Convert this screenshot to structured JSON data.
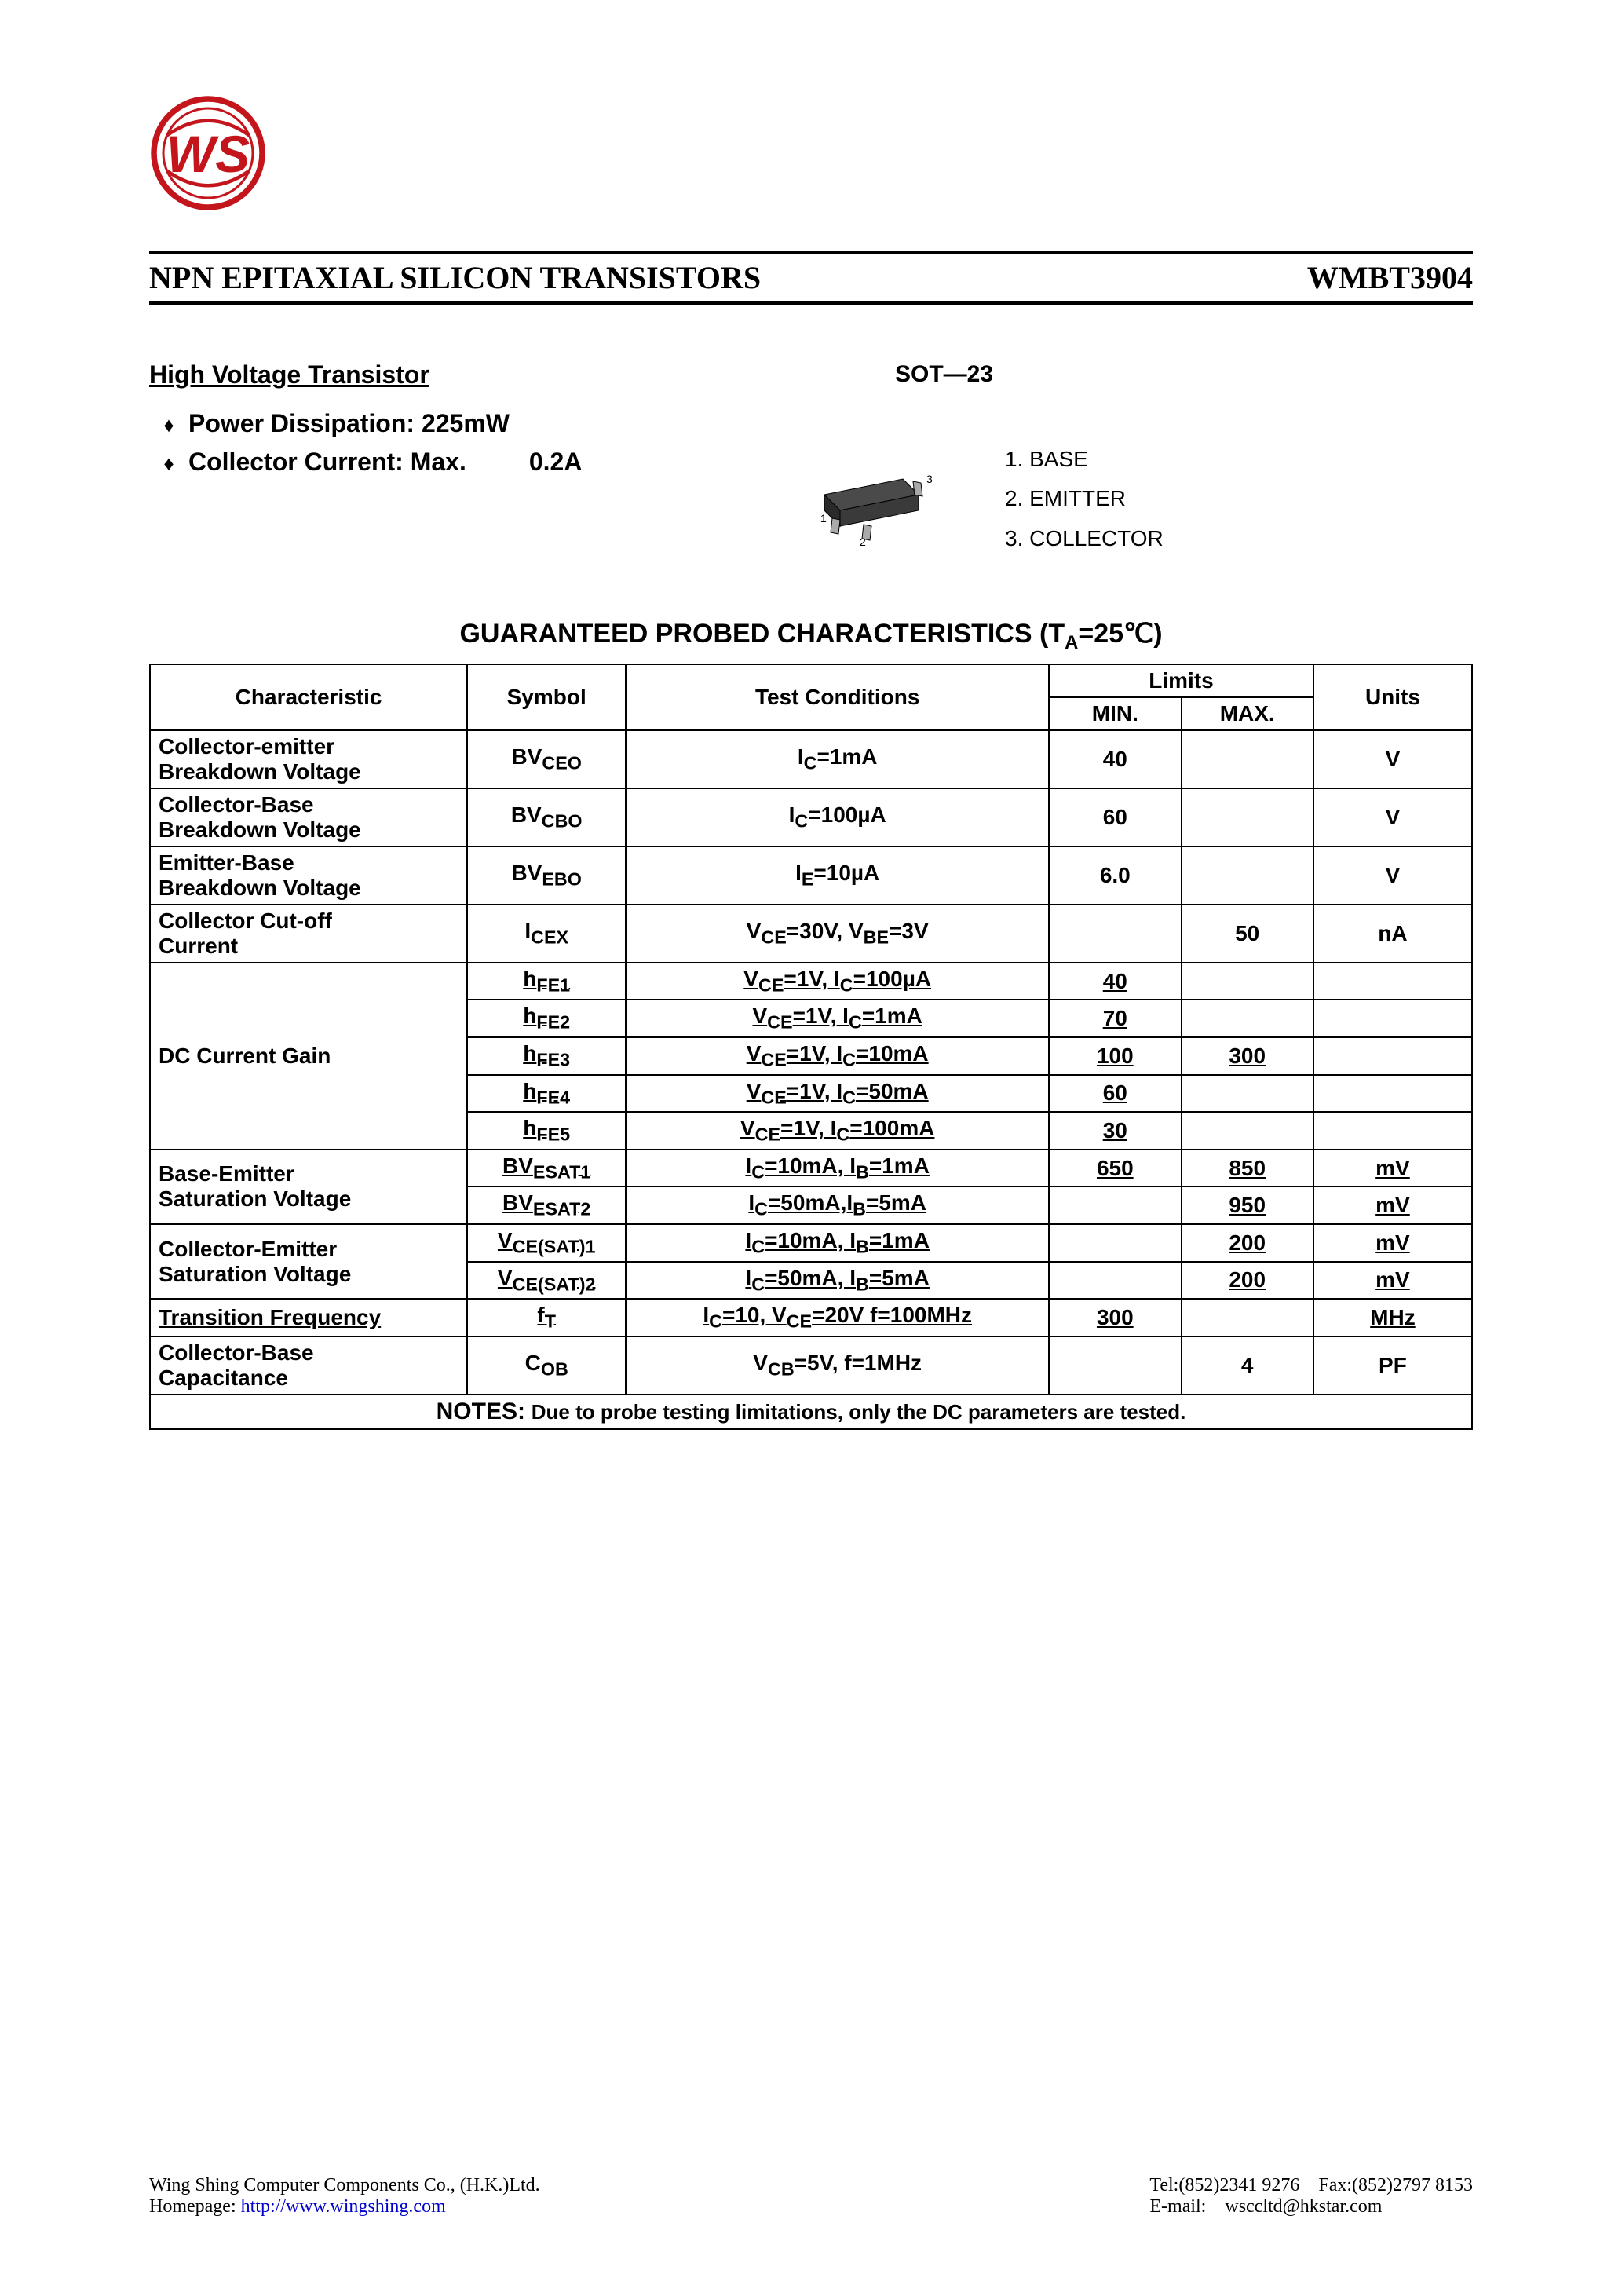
{
  "header": {
    "title": "NPN EPITAXIAL SILICON TRANSISTORS",
    "part": "WMBT3904"
  },
  "subheading": "High Voltage Transistor",
  "bullets": [
    {
      "label": "Power Dissipation: 225mW",
      "value": ""
    },
    {
      "label": "Collector Current:  Max.",
      "value": "0.2A"
    }
  ],
  "package": {
    "label": "SOT—23",
    "pins": [
      "1. BASE",
      "2. EMITTER",
      "3. COLLECTOR"
    ]
  },
  "tableTitle": {
    "prefix": "GUARANTEED PROBED CHARACTERISTICS (T",
    "subA": "A",
    "suffix": "=25℃)"
  },
  "columns": {
    "characteristic": "Characteristic",
    "symbol": "Symbol",
    "testConditions": "Test Conditions",
    "limits": "Limits",
    "min": "MIN.",
    "max": "MAX.",
    "units": "Units"
  },
  "rows": [
    {
      "char": "Collector-emitter<br>Breakdown Voltage",
      "sym": "BV<sub>CEO</sub>",
      "cond": "I<sub>C</sub>=1mA",
      "min": "40",
      "max": "",
      "unit": "V",
      "u": false,
      "charRowspan": 1
    },
    {
      "char": "Collector-Base<br>Breakdown Voltage",
      "sym": "BV<sub>CBO</sub>",
      "cond": "I<sub>C</sub>=100µA",
      "min": "60",
      "max": "",
      "unit": "V",
      "u": false,
      "charRowspan": 1
    },
    {
      "char": "Emitter-Base<br>Breakdown Voltage",
      "sym": "BV<sub>EBO</sub>",
      "cond": "I<sub>E</sub>=10µA",
      "min": "6.0",
      "max": "",
      "unit": "V",
      "u": false,
      "charRowspan": 1
    },
    {
      "char": "Collector  Cut-off<br>Current",
      "sym": "I<sub>CEX</sub>",
      "cond": "V<sub>CE</sub>=30V, V<sub>BE</sub>=3V",
      "min": "",
      "max": "50",
      "unit": "nA",
      "u": false,
      "charRowspan": 1
    },
    {
      "char": "DC Current Gain",
      "sym": "h<sub>FE1</sub>",
      "cond": "V<sub>CE</sub>=1V, I<sub>C</sub>=100µA",
      "min": "40",
      "max": "",
      "unit": "",
      "u": true,
      "charRowspan": 5
    },
    {
      "char": null,
      "sym": "h<sub>FE2</sub>",
      "cond": "V<sub>CE</sub>=1V, I<sub>C</sub>=1mA",
      "min": "70",
      "max": "",
      "unit": "",
      "u": true
    },
    {
      "char": null,
      "sym": "h<sub>FE3</sub>",
      "cond": "V<sub>CE</sub>=1V, I<sub>C</sub>=10mA",
      "min": "100",
      "max": "300",
      "unit": "",
      "u": true
    },
    {
      "char": null,
      "sym": "h<sub>FE4</sub>",
      "cond": "V<sub>CE</sub>=1V, I<sub>C</sub>=50mA",
      "min": "60",
      "max": "",
      "unit": "",
      "u": true
    },
    {
      "char": null,
      "sym": "h<sub>FE5</sub>",
      "cond": "V<sub>CE</sub>=1V, I<sub>C</sub>=100mA",
      "min": "30",
      "max": "",
      "unit": "",
      "u": true
    },
    {
      "char": "Base-Emitter<br>Saturation Voltage",
      "sym": "BV<sub>ESAT1</sub>",
      "cond": "I<sub>C</sub>=10mA, I<sub>B</sub>=1mA",
      "min": "650",
      "max": "850",
      "unit": "mV",
      "u": true,
      "charRowspan": 2
    },
    {
      "char": null,
      "sym": "BV<sub>ESAT2</sub>",
      "cond": "I<sub>C</sub>=50mA,I<sub>B</sub>=5mA",
      "min": "",
      "max": "950",
      "unit": "mV",
      "u": true
    },
    {
      "char": "Collector-Emitter<br>Saturation Voltage",
      "sym": "V<sub>CE(SAT)1</sub>",
      "cond": "I<sub>C</sub>=10mA, I<sub>B</sub>=1mA",
      "min": "",
      "max": "200",
      "unit": "mV",
      "u": true,
      "charRowspan": 2
    },
    {
      "char": null,
      "sym": "V<sub>CE(SAT)2</sub>",
      "cond": "I<sub>C</sub>=50mA, I<sub>B</sub>=5mA",
      "min": "",
      "max": "200",
      "unit": "mV",
      "u": true
    },
    {
      "char": "Transition Frequency",
      "sym": "f<sub>T</sub>",
      "cond": "I<sub>C</sub>=10, V<sub>CE</sub>=20V f=100MHz",
      "min": "300",
      "max": "",
      "unit": "MHz",
      "u": true,
      "charRowspan": 1
    },
    {
      "char": "Collector-Base<br>Capacitance",
      "sym": "C<sub>OB</sub>",
      "cond": "V<sub>CB</sub>=5V, f=1MHz",
      "min": "",
      "max": "4",
      "unit": "PF",
      "u": false,
      "charRowspan": 1
    }
  ],
  "notes": {
    "label": "NOTES:",
    "text": "Due to probe testing limitations, only the DC parameters are tested."
  },
  "footer": {
    "company": "Wing Shing Computer Components Co., (H.K.)Ltd.",
    "homepageLabel": "Homepage:",
    "homepageUrl": "http://www.wingshing.com",
    "tel": "Tel:(852)2341 9276",
    "fax": "Fax:(852)2797 8153",
    "emailLabel": "E-mail:",
    "email": "wsccltd@hkstar.com"
  },
  "colors": {
    "logoRed": "#c4151c",
    "text": "#000000",
    "link": "#0000cc"
  },
  "colWidths": {
    "characteristic": "24%",
    "symbol": "12%",
    "testConditions": "32%",
    "min": "10%",
    "max": "10%",
    "units": "12%"
  }
}
